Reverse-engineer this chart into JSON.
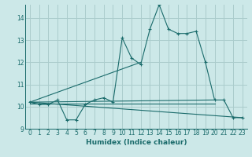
{
  "background_color": "#cce8e8",
  "grid_color": "#aacccc",
  "line_color": "#1a6b6b",
  "xlabel": "Humidex (Indice chaleur)",
  "xlim": [
    -0.5,
    23.5
  ],
  "ylim": [
    9,
    14.6
  ],
  "yticks": [
    9,
    10,
    11,
    12,
    13,
    14
  ],
  "xticks": [
    0,
    1,
    2,
    3,
    4,
    5,
    6,
    7,
    8,
    9,
    10,
    11,
    12,
    13,
    14,
    15,
    16,
    17,
    18,
    19,
    20,
    21,
    22,
    23
  ],
  "series1": {
    "x": [
      0,
      1,
      2,
      3,
      4,
      5,
      6,
      7,
      8,
      9,
      10,
      11,
      12,
      13,
      14,
      15,
      16,
      17,
      18,
      19,
      20,
      21,
      22,
      23
    ],
    "y": [
      10.2,
      10.1,
      10.1,
      10.3,
      9.4,
      9.4,
      10.1,
      10.3,
      10.4,
      10.2,
      13.1,
      12.2,
      11.9,
      13.5,
      14.6,
      13.5,
      13.3,
      13.3,
      13.4,
      12.0,
      10.3,
      10.3,
      9.5,
      9.5
    ]
  },
  "series2_flat": {
    "x": [
      0,
      20
    ],
    "y": [
      10.2,
      10.3
    ]
  },
  "series3_down": {
    "x": [
      0,
      23
    ],
    "y": [
      10.2,
      9.5
    ]
  },
  "series4_up": {
    "x": [
      0,
      12
    ],
    "y": [
      10.2,
      12.0
    ]
  },
  "series5_flat2": {
    "x": [
      0,
      20
    ],
    "y": [
      10.15,
      10.15
    ]
  }
}
